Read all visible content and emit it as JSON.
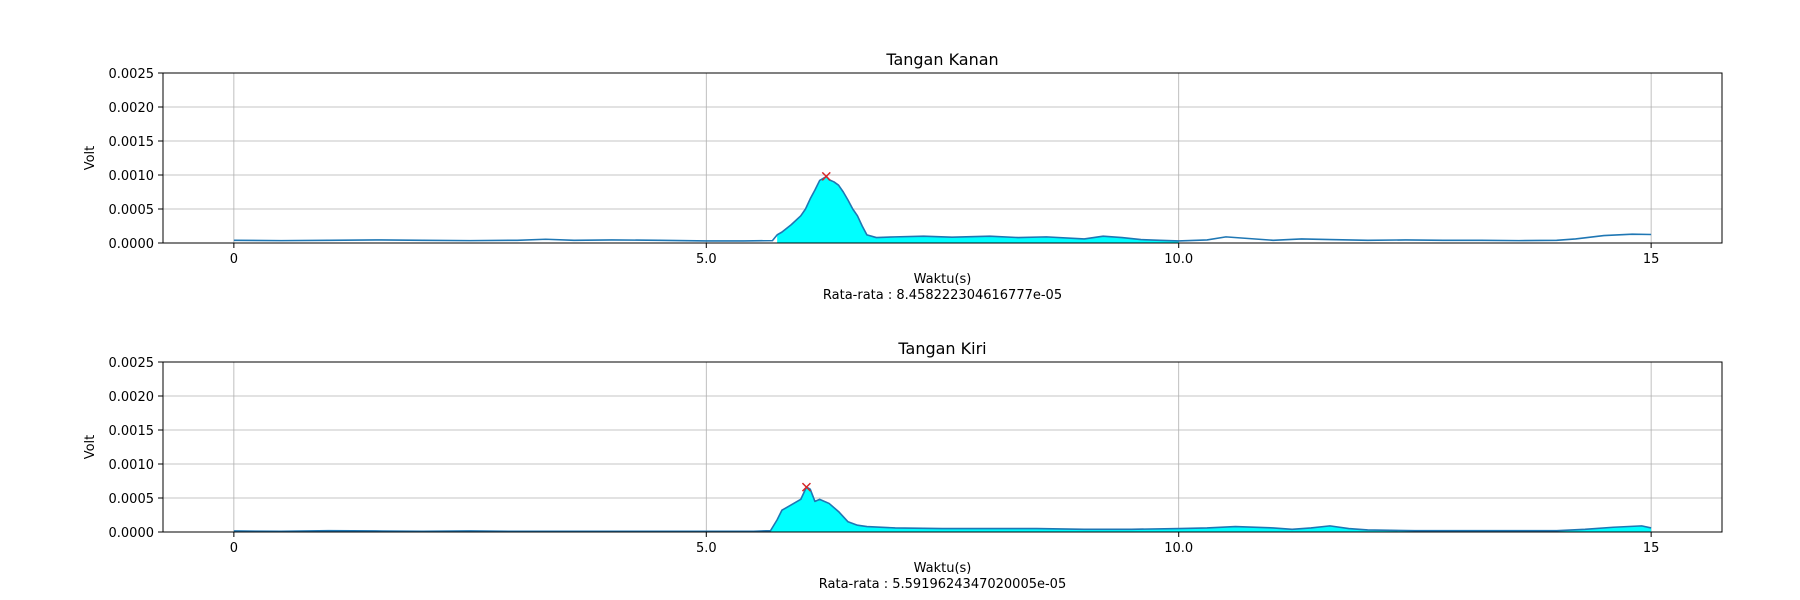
{
  "chart_data": [
    {
      "type": "area",
      "title": "Tangan Kanan",
      "xlabel": "Waktu(s)",
      "ylabel": "Volt",
      "note": "Rata-rata : 8.458222304616777e-05",
      "xlim": [
        -0.75,
        15.75
      ],
      "ylim": [
        0,
        0.0025
      ],
      "xticks": [
        0,
        5,
        10,
        15
      ],
      "xtick_labels": [
        "0",
        "5.0",
        "10.0",
        "15"
      ],
      "yticks": [
        0,
        0.0005,
        0.001,
        0.0015,
        0.002,
        0.0025
      ],
      "ytick_labels": [
        "0.0000",
        "0.0005",
        "0.0010",
        "0.0015",
        "0.0020",
        "0.0025"
      ],
      "grid": true,
      "fill_range": [
        5.75,
        10.0
      ],
      "line_color": "#1f77b4",
      "fill_color": "#00ffff",
      "marker_color": "#d62728",
      "peak": {
        "x": 6.27,
        "y": 0.00098
      },
      "x": [
        0,
        0.5,
        1.0,
        1.5,
        2.0,
        2.5,
        3.0,
        3.3,
        3.6,
        4.0,
        4.5,
        5.0,
        5.4,
        5.7,
        5.75,
        5.8,
        5.9,
        6.0,
        6.05,
        6.1,
        6.15,
        6.2,
        6.25,
        6.27,
        6.3,
        6.35,
        6.4,
        6.45,
        6.5,
        6.55,
        6.6,
        6.65,
        6.7,
        6.8,
        7.0,
        7.3,
        7.6,
        8.0,
        8.3,
        8.6,
        9.0,
        9.2,
        9.4,
        9.6,
        9.8,
        10.0,
        10.3,
        10.5,
        10.7,
        11.0,
        11.3,
        11.6,
        12.0,
        12.4,
        12.8,
        13.2,
        13.6,
        14.0,
        14.2,
        14.5,
        14.8,
        15.0
      ],
      "y": [
        4e-05,
        3.5e-05,
        4e-05,
        4.5e-05,
        4e-05,
        3.5e-05,
        4e-05,
        5.5e-05,
        4e-05,
        4.5e-05,
        4e-05,
        3e-05,
        3e-05,
        3.5e-05,
        0.00012,
        0.00016,
        0.00027,
        0.0004,
        0.0005,
        0.00065,
        0.00078,
        0.00092,
        0.00096,
        0.00098,
        0.00093,
        0.0009,
        0.00085,
        0.00075,
        0.00063,
        0.0005,
        0.0004,
        0.00025,
        0.00012,
        8e-05,
        9e-05,
        0.0001,
        8.5e-05,
        0.0001,
        8e-05,
        9e-05,
        6e-05,
        0.0001,
        8e-05,
        5e-05,
        4e-05,
        3e-05,
        4.5e-05,
        9e-05,
        7e-05,
        4e-05,
        6e-05,
        5e-05,
        4e-05,
        4.5e-05,
        4e-05,
        4e-05,
        3.5e-05,
        4e-05,
        6e-05,
        0.00011,
        0.00013,
        0.000125
      ]
    },
    {
      "type": "area",
      "title": "Tangan Kiri",
      "xlabel": "Waktu(s)",
      "ylabel": "Volt",
      "note": "Rata-rata : 5.5919624347020005e-05",
      "xlim": [
        -0.75,
        15.75
      ],
      "ylim": [
        0,
        0.0025
      ],
      "xticks": [
        0,
        5,
        10,
        15
      ],
      "xtick_labels": [
        "0",
        "5.0",
        "10.0",
        "15"
      ],
      "yticks": [
        0,
        0.0005,
        0.001,
        0.0015,
        0.002,
        0.0025
      ],
      "ytick_labels": [
        "0.0000",
        "0.0005",
        "0.0010",
        "0.0015",
        "0.0020",
        "0.0025"
      ],
      "grid": true,
      "fill_range": [
        0,
        15.0
      ],
      "line_color": "#1f77b4",
      "fill_color": "#00ffff",
      "marker_color": "#d62728",
      "peak": {
        "x": 6.06,
        "y": 0.00066
      },
      "x": [
        0,
        0.5,
        1.0,
        1.5,
        2.0,
        2.5,
        3.0,
        3.5,
        4.0,
        4.5,
        5.0,
        5.5,
        5.68,
        5.75,
        5.8,
        5.9,
        6.0,
        6.06,
        6.1,
        6.15,
        6.2,
        6.3,
        6.4,
        6.5,
        6.6,
        6.7,
        7.0,
        7.5,
        8.0,
        8.5,
        9.0,
        9.5,
        10.0,
        10.3,
        10.6,
        11.0,
        11.2,
        11.4,
        11.6,
        11.8,
        12.0,
        12.5,
        13.0,
        13.5,
        14.0,
        14.3,
        14.6,
        14.9,
        15.0
      ],
      "y": [
        1.5e-05,
        1e-05,
        2e-05,
        1.5e-05,
        1e-05,
        1.5e-05,
        1e-05,
        1e-05,
        1e-05,
        1e-05,
        1e-05,
        1e-05,
        2e-05,
        0.00018,
        0.00032,
        0.0004,
        0.00048,
        0.00066,
        0.00063,
        0.00045,
        0.00048,
        0.00042,
        0.0003,
        0.00015,
        0.0001,
        8e-05,
        6e-05,
        5e-05,
        5e-05,
        5e-05,
        4e-05,
        4e-05,
        5e-05,
        6e-05,
        8e-05,
        6e-05,
        4e-05,
        6e-05,
        9e-05,
        5e-05,
        3e-05,
        2e-05,
        2e-05,
        2e-05,
        2e-05,
        4e-05,
        7e-05,
        9e-05,
        6e-05
      ]
    }
  ]
}
